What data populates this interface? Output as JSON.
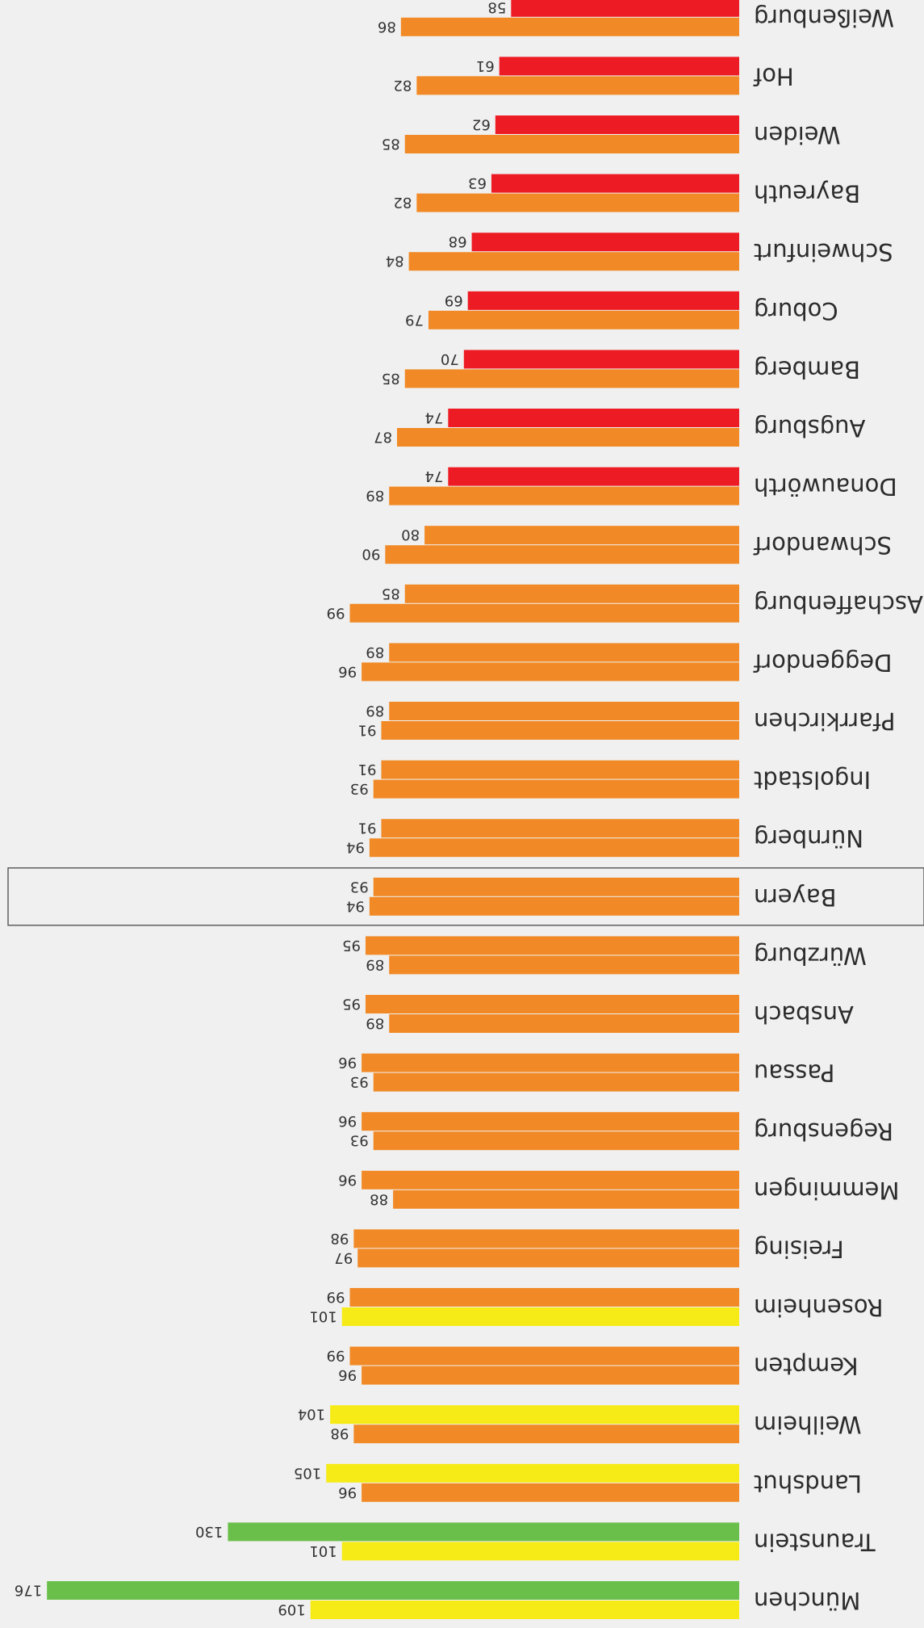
{
  "chart_data": {
    "type": "bar",
    "orientation": "horizontal",
    "title": "",
    "xlabel": "",
    "ylabel": "",
    "xlim": [
      0,
      176
    ],
    "legend": "none",
    "grid": false,
    "highlighted_category": "Bayern",
    "categories": [
      "München",
      "Traunstein",
      "Landshut",
      "Weilheim",
      "Kempten",
      "Rosenheim",
      "Freising",
      "Memmingen",
      "Regensburg",
      "Passau",
      "Ansbach",
      "Würzburg",
      "Bayern",
      "Nürnberg",
      "Ingolstadt",
      "Pfarrkirchen",
      "Deggendorf",
      "Aschaffenburg",
      "Schwandorf",
      "Donauwörth",
      "Augsburg",
      "Bamberg",
      "Coburg",
      "Schweinfurt",
      "Bayreuth",
      "Weiden",
      "Hof",
      "Weißenburg"
    ],
    "series": [
      {
        "values": [
          176,
          130,
          105,
          104,
          99,
          99,
          98,
          96,
          96,
          96,
          95,
          95,
          93,
          91,
          91,
          89,
          89,
          85,
          80,
          74,
          74,
          70,
          69,
          68,
          63,
          62,
          61,
          58
        ],
        "colors": [
          "#6abf4b",
          "#6abf4b",
          "#f6eb16",
          "#f6eb16",
          "#f18a26",
          "#f18a26",
          "#f18a26",
          "#f18a26",
          "#f18a26",
          "#f18a26",
          "#f18a26",
          "#f18a26",
          "#f18a26",
          "#f18a26",
          "#f18a26",
          "#f18a26",
          "#f18a26",
          "#f18a26",
          "#f18a26",
          "#ed1c24",
          "#ed1c24",
          "#ed1c24",
          "#ed1c24",
          "#ed1c24",
          "#ed1c24",
          "#ed1c24",
          "#ed1c24",
          "#ed1c24"
        ]
      },
      {
        "values": [
          109,
          101,
          96,
          98,
          96,
          101,
          97,
          88,
          93,
          93,
          89,
          89,
          94,
          94,
          93,
          91,
          96,
          99,
          90,
          89,
          87,
          85,
          79,
          84,
          82,
          85,
          82,
          86
        ],
        "colors": [
          "#f6eb16",
          "#f6eb16",
          "#f18a26",
          "#f18a26",
          "#f18a26",
          "#f6eb16",
          "#f18a26",
          "#f18a26",
          "#f18a26",
          "#f18a26",
          "#f18a26",
          "#f18a26",
          "#f18a26",
          "#f18a26",
          "#f18a26",
          "#f18a26",
          "#f18a26",
          "#f18a26",
          "#f18a26",
          "#f18a26",
          "#f18a26",
          "#f18a26",
          "#f18a26",
          "#f18a26",
          "#f18a26",
          "#f18a26",
          "#f18a26",
          "#f18a26"
        ]
      }
    ]
  }
}
